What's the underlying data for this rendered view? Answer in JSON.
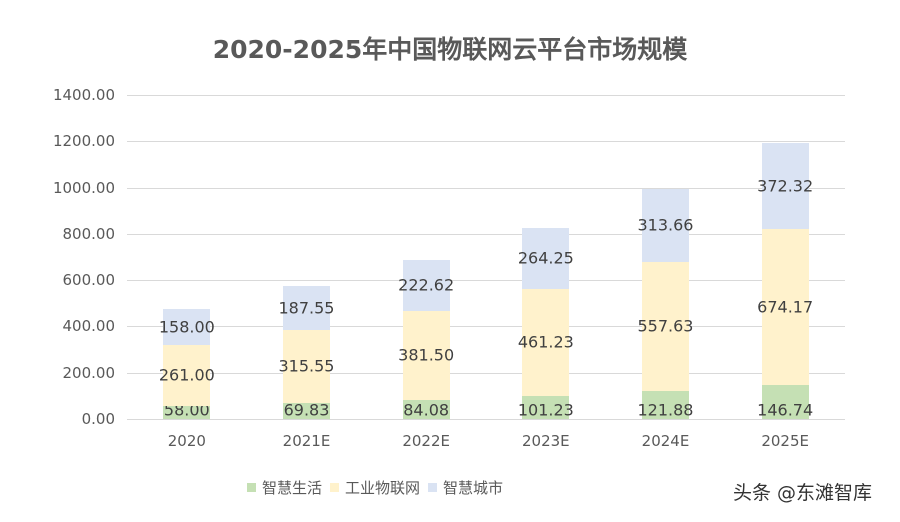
{
  "chart_data": {
    "type": "bar",
    "stacked": true,
    "title": "2020-2025年中国物联网云平台市场规模",
    "xlabel": "",
    "ylabel": "",
    "ylim": [
      0,
      1400
    ],
    "yticks": [
      "0.00",
      "200.00",
      "400.00",
      "600.00",
      "800.00",
      "1000.00",
      "1200.00",
      "1400.00"
    ],
    "grid": true,
    "legend_position": "bottom",
    "categories": [
      "2020",
      "2021E",
      "2022E",
      "2023E",
      "2024E",
      "2025E"
    ],
    "series": [
      {
        "name": "智慧生活",
        "color": "#c5e0b4",
        "values": [
          58.0,
          69.83,
          84.08,
          101.23,
          121.88,
          146.74
        ],
        "labels": [
          "58.00",
          "69.83",
          "84.08",
          "101.23",
          "121.88",
          "146.74"
        ]
      },
      {
        "name": "工业物联网",
        "color": "#fff2cc",
        "values": [
          261.0,
          315.55,
          381.5,
          461.23,
          557.63,
          674.17
        ],
        "labels": [
          "261.00",
          "315.55",
          "381.50",
          "461.23",
          "557.63",
          "674.17"
        ]
      },
      {
        "name": "智慧城市",
        "color": "#dae3f3",
        "values": [
          158.0,
          187.55,
          222.62,
          264.25,
          313.66,
          372.32
        ],
        "labels": [
          "158.00",
          "187.55",
          "222.62",
          "264.25",
          "313.66",
          "372.32"
        ]
      }
    ]
  },
  "watermark": "头条 @东滩智库"
}
